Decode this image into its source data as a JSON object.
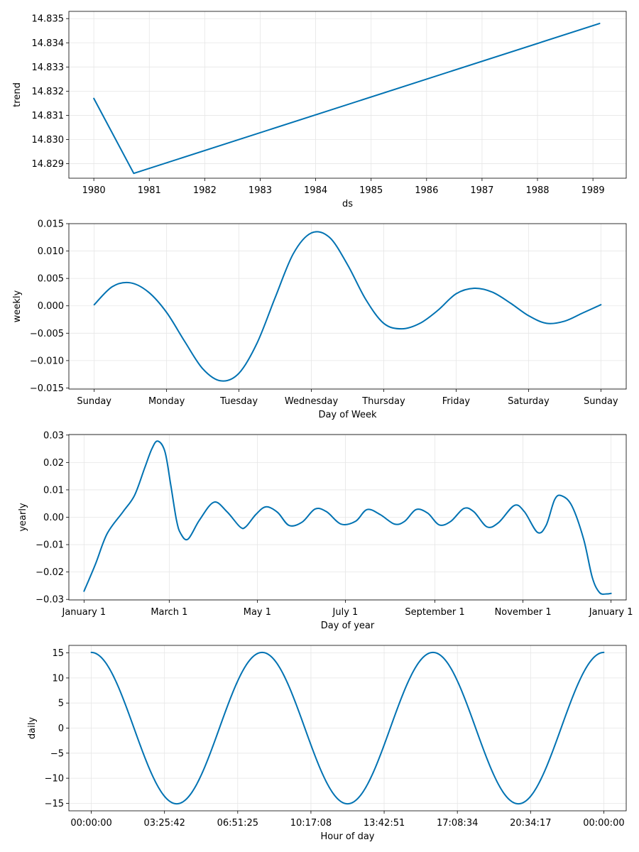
{
  "chart_data": [
    {
      "type": "line",
      "xlabel": "ds",
      "ylabel": "trend",
      "xlim": [
        1979.55,
        1989.6
      ],
      "ylim": [
        14.8284,
        14.8353
      ],
      "x_ticks": [
        1980,
        1981,
        1982,
        1983,
        1984,
        1985,
        1986,
        1987,
        1988,
        1989
      ],
      "x_tick_labels": [
        "1980",
        "1981",
        "1982",
        "1983",
        "1984",
        "1985",
        "1986",
        "1987",
        "1988",
        "1989"
      ],
      "y_ticks": [
        14.829,
        14.83,
        14.831,
        14.832,
        14.833,
        14.834,
        14.835
      ],
      "y_tick_labels": [
        "14.829",
        "14.830",
        "14.831",
        "14.832",
        "14.833",
        "14.834",
        "14.835"
      ],
      "grid": true,
      "series": [
        {
          "color": "#0072b2",
          "x": [
            1980.0,
            1980.72,
            1989.12
          ],
          "y": [
            14.8317,
            14.8286,
            14.8348
          ]
        }
      ]
    },
    {
      "type": "line",
      "xlabel": "Day of Week",
      "ylabel": "weekly",
      "xlim": [
        -0.35,
        7.35
      ],
      "ylim": [
        -0.0152,
        0.015
      ],
      "x_ticks": [
        0,
        1,
        2,
        3,
        4,
        5,
        6,
        7
      ],
      "x_tick_labels": [
        "Sunday",
        "Monday",
        "Tuesday",
        "Wednesday",
        "Thursday",
        "Friday",
        "Saturday",
        "Sunday"
      ],
      "y_ticks": [
        -0.015,
        -0.01,
        -0.005,
        0.0,
        0.005,
        0.01,
        0.015
      ],
      "y_tick_labels": [
        "−0.015",
        "−0.010",
        "−0.005",
        "0.000",
        "0.005",
        "0.010",
        "0.015"
      ],
      "grid": true,
      "series": [
        {
          "color": "#0072b2",
          "x": [
            0.0,
            0.25,
            0.5,
            0.75,
            1.0,
            1.25,
            1.5,
            1.75,
            2.0,
            2.25,
            2.5,
            2.75,
            3.0,
            3.25,
            3.5,
            3.75,
            4.0,
            4.25,
            4.5,
            4.75,
            5.0,
            5.25,
            5.5,
            5.75,
            6.0,
            6.25,
            6.5,
            6.75,
            7.0
          ],
          "y": [
            0.0002,
            0.0035,
            0.0042,
            0.0025,
            -0.0012,
            -0.0065,
            -0.0115,
            -0.0137,
            -0.0123,
            -0.0068,
            0.0015,
            0.0095,
            0.0133,
            0.0125,
            0.0075,
            0.0012,
            -0.0032,
            -0.0042,
            -0.0032,
            -0.0008,
            0.0022,
            0.0032,
            0.0025,
            0.0005,
            -0.0018,
            -0.0032,
            -0.0028,
            -0.0013,
            0.0002
          ]
        }
      ]
    },
    {
      "type": "line",
      "xlabel": "Day of year",
      "ylabel": "yearly",
      "xlim": [
        -10.5,
        375.5
      ],
      "ylim": [
        -0.0302,
        0.0302
      ],
      "x_ticks": [
        0,
        59,
        120,
        181,
        243,
        304,
        365
      ],
      "x_tick_labels": [
        "January 1",
        "March 1",
        "May 1",
        "July 1",
        "September 1",
        "November 1",
        "January 1"
      ],
      "y_ticks": [
        -0.03,
        -0.02,
        -0.01,
        0.0,
        0.01,
        0.02,
        0.03
      ],
      "y_tick_labels": [
        "−0.03",
        "−0.02",
        "−0.01",
        "0.00",
        "0.01",
        "0.02",
        "0.03"
      ],
      "grid": true,
      "series": [
        {
          "color": "#0072b2",
          "x": [
            0,
            8,
            16,
            27,
            35,
            42,
            47,
            51,
            56,
            60,
            64,
            67,
            72,
            80,
            90,
            99,
            108,
            112,
            119,
            126,
            134,
            142,
            151,
            160,
            168,
            178,
            188,
            196,
            205,
            215,
            222,
            230,
            238,
            246,
            254,
            263,
            270,
            279,
            287,
            298,
            305,
            314,
            320,
            326,
            331,
            338,
            346,
            352,
            357,
            362,
            365
          ],
          "y": [
            -0.027,
            -0.017,
            -0.006,
            0.002,
            0.008,
            0.018,
            0.025,
            0.0278,
            0.024,
            0.012,
            -0.001,
            -0.006,
            -0.008,
            -0.001,
            0.0055,
            0.002,
            -0.0035,
            -0.0035,
            0.001,
            0.0038,
            0.0018,
            -0.003,
            -0.0018,
            0.003,
            0.002,
            -0.0025,
            -0.0015,
            0.0028,
            0.001,
            -0.0025,
            -0.0015,
            0.0028,
            0.0015,
            -0.0028,
            -0.0015,
            0.0032,
            0.002,
            -0.0035,
            -0.002,
            0.0043,
            0.002,
            -0.0055,
            -0.003,
            0.0065,
            0.0078,
            0.004,
            -0.008,
            -0.022,
            -0.0275,
            -0.028,
            -0.0278
          ]
        }
      ]
    },
    {
      "type": "line",
      "xlabel": "Hour of day",
      "ylabel": "daily",
      "xlim": [
        -1.05,
        25.05
      ],
      "ylim": [
        -16.5,
        16.5
      ],
      "x_ticks": [
        0,
        3.4283,
        6.8569,
        10.2856,
        13.7142,
        17.1428,
        20.5714,
        24
      ],
      "x_tick_labels": [
        "00:00:00",
        "03:25:42",
        "06:51:25",
        "10:17:08",
        "13:42:51",
        "17:08:34",
        "20:34:17",
        "00:00:00"
      ],
      "y_ticks": [
        -15,
        -10,
        -5,
        0,
        5,
        10,
        15
      ],
      "y_tick_labels": [
        "−15",
        "−10",
        "−5",
        "0",
        "5",
        "10",
        "15"
      ],
      "grid": true,
      "series": [
        {
          "color": "#0072b2",
          "function": "cosine",
          "amplitude": 15.1,
          "period_hours": 8,
          "x_start": 0,
          "x_end": 24
        }
      ]
    }
  ]
}
